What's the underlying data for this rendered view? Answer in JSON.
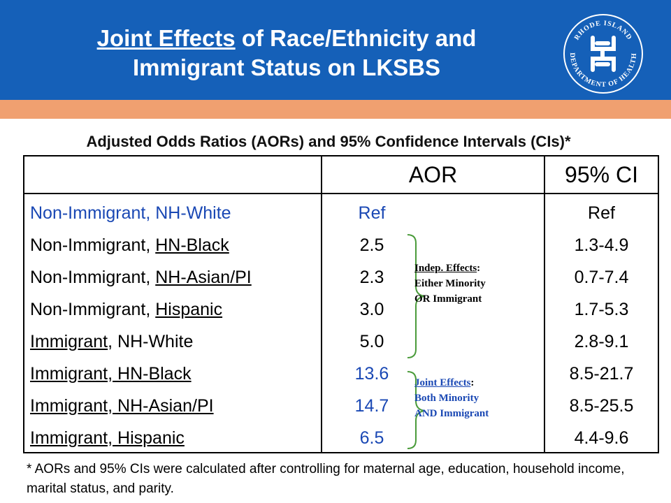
{
  "header": {
    "title_underlined": "Joint Effects",
    "title_rest_line1": " of Race/Ethnicity and",
    "title_line2": "Immigrant Status on LKSBS",
    "logo_top_text": "RHODE ISLAND",
    "logo_bottom_text": "DEPARTMENT OF HEALTH",
    "colors": {
      "header_bg": "#1560b8",
      "stripe": "#f0a070",
      "accent_blue": "#1a48b4"
    }
  },
  "subtitle": "Adjusted Odds Ratios (AORs) and 95% Confidence Intervals (CIs)*",
  "table": {
    "col_aor": "AOR",
    "col_ci": "95% CI",
    "rows": [
      {
        "pre": "Non-Immigrant, NH-White",
        "u": "",
        "post": "",
        "aor": "Ref",
        "ci": "Ref"
      },
      {
        "pre": "Non-Immigrant, ",
        "u": "HN-Black",
        "post": "",
        "aor": "2.5",
        "ci": "1.3-4.9"
      },
      {
        "pre": "Non-Immigrant, ",
        "u": "NH-Asian/PI",
        "post": "",
        "aor": "2.3",
        "ci": "0.7-7.4"
      },
      {
        "pre": "Non-Immigrant, ",
        "u": "Hispanic",
        "post": "",
        "aor": "3.0",
        "ci": "1.7-5.3"
      },
      {
        "pre": "",
        "u": "Immigrant",
        "post": ", NH-White",
        "aor": "5.0",
        "ci": "2.8-9.1"
      },
      {
        "pre": "",
        "u": "Immigrant, HN-Black",
        "post": "",
        "aor": "13.6",
        "ci": "8.5-21.7"
      },
      {
        "pre": "",
        "u": "Immigrant, NH-Asian/PI",
        "post": "",
        "aor": "14.7",
        "ci": "8.5-25.5"
      },
      {
        "pre": "",
        "u": "Immigrant, Hispanic",
        "post": "",
        "aor": "6.5",
        "ci": "4.4-9.6"
      }
    ]
  },
  "annotations": {
    "indep": {
      "title": "Indep. Effects",
      "title_suffix": ":",
      "line2": "Either Minority",
      "line3": "OR Immigrant"
    },
    "joint": {
      "title": "Joint Effects",
      "title_suffix": ":",
      "line2": "Both Minority",
      "line3": "AND Immigrant"
    }
  },
  "footnote": "* AORs and 95% CIs were calculated after controlling for maternal age, education, household income, marital status, and parity."
}
